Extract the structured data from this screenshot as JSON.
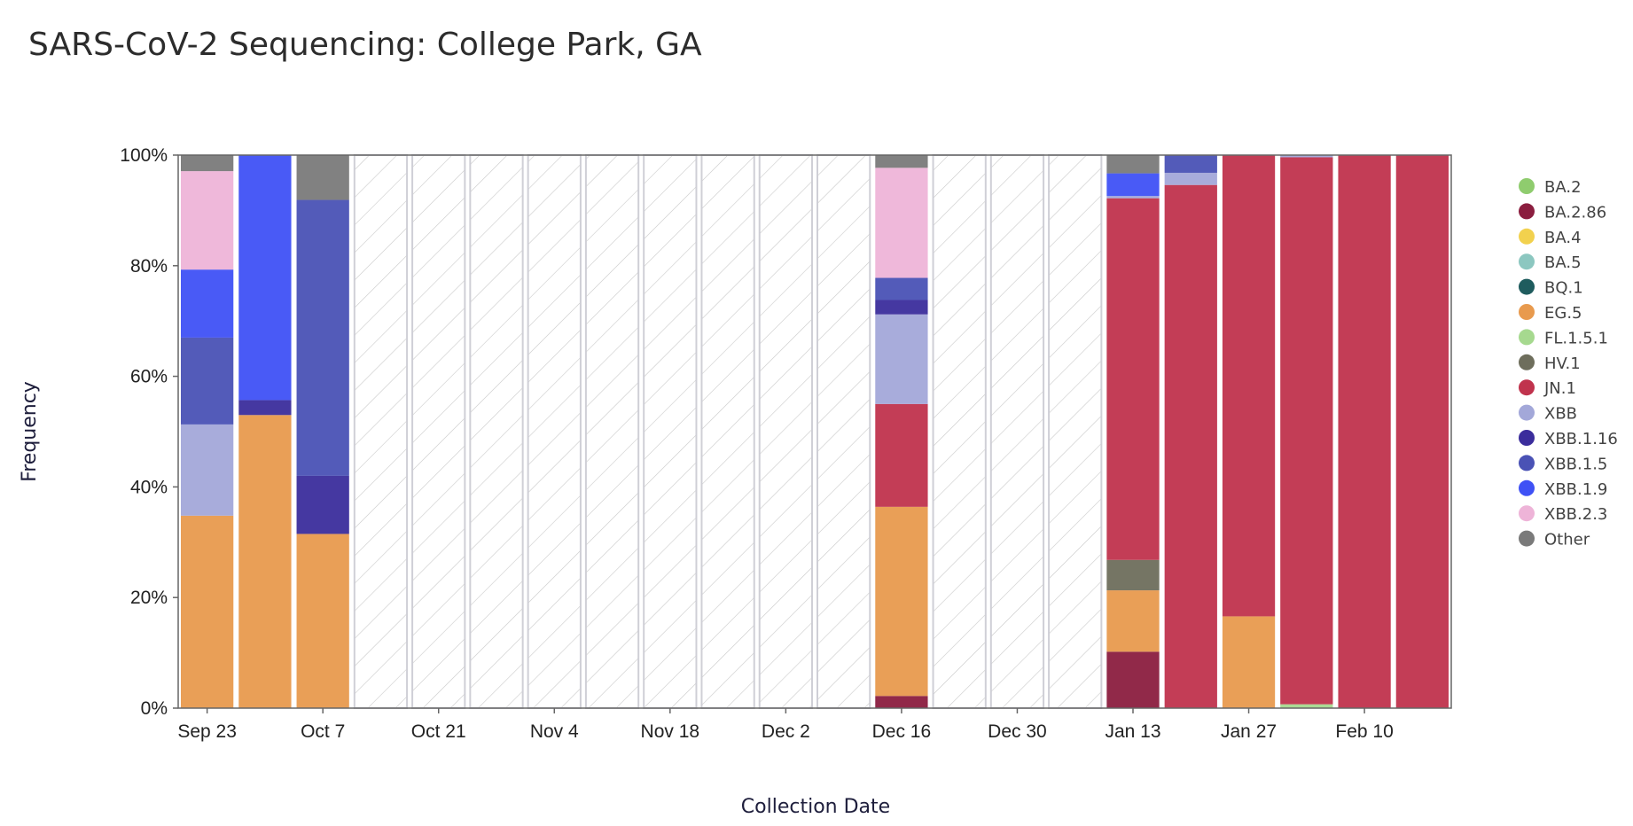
{
  "title": "SARS-CoV-2 Sequencing: College Park, GA",
  "colors": {
    "BA.2": "#8fcc6e",
    "BA.2.86": "#8b1e3f",
    "BA.4": "#f2d14e",
    "BA.5": "#8cc7c0",
    "BQ.1": "#1f5c5e",
    "EG.5": "#e89a4e",
    "FL.1.5.1": "#a6d98f",
    "HV.1": "#6e6e5c",
    "JN.1": "#c0334d",
    "XBB": "#a3a8d9",
    "XBB.1.16": "#3b2d9c",
    "XBB.1.5": "#4a52b5",
    "XBB.1.9": "#3f51f5",
    "XBB.2.3": "#eeb4d8",
    "Other": "#7a7a7a"
  },
  "chart_data": {
    "type": "bar",
    "stacked": true,
    "xlabel": "Collection Date",
    "ylabel": "Frequency",
    "ylim": [
      0,
      100
    ],
    "y_ticks": [
      "0%",
      "20%",
      "40%",
      "60%",
      "80%",
      "100%"
    ],
    "x_tick_labels": [
      "Sep 23",
      "Oct 7",
      "Oct 21",
      "Nov 4",
      "Nov 18",
      "Dec 2",
      "Dec 16",
      "Dec 30",
      "Jan 13",
      "Jan 27",
      "Feb 10"
    ],
    "x_tick_weeks": [
      0,
      2,
      4,
      6,
      8,
      10,
      12,
      14,
      16,
      18,
      20
    ],
    "weeks": [
      "Sep 23",
      "Sep 30",
      "Oct 7",
      "Oct 14",
      "Oct 21",
      "Oct 28",
      "Nov 4",
      "Nov 11",
      "Nov 18",
      "Nov 25",
      "Dec 2",
      "Dec 9",
      "Dec 16",
      "Dec 23",
      "Dec 30",
      "Jan 6",
      "Jan 13",
      "Jan 20",
      "Jan 27",
      "Feb 3",
      "Feb 10",
      "Feb 17"
    ],
    "legend_position": "right",
    "legend": [
      "BA.2",
      "BA.2.86",
      "BA.4",
      "BA.5",
      "BQ.1",
      "EG.5",
      "FL.1.5.1",
      "HV.1",
      "JN.1",
      "XBB",
      "XBB.1.16",
      "XBB.1.5",
      "XBB.1.9",
      "XBB.2.3",
      "Other"
    ],
    "series": [
      {
        "name": "BA.2.86",
        "values": [
          0,
          0,
          0,
          null,
          null,
          null,
          null,
          null,
          null,
          null,
          null,
          null,
          2.2,
          null,
          null,
          null,
          10.2,
          0,
          0,
          0,
          0,
          0
        ]
      },
      {
        "name": "EG.5",
        "values": [
          34.8,
          53,
          31.5,
          null,
          null,
          null,
          null,
          null,
          null,
          null,
          null,
          null,
          34.2,
          null,
          null,
          null,
          11.1,
          0,
          16.6,
          0,
          0,
          0
        ]
      },
      {
        "name": "FL.1.5.1",
        "values": [
          0,
          0,
          0,
          null,
          null,
          null,
          null,
          null,
          null,
          null,
          null,
          null,
          0,
          null,
          null,
          null,
          0,
          0,
          0,
          0.7,
          0,
          0
        ]
      },
      {
        "name": "HV.1",
        "values": [
          0,
          0,
          0,
          null,
          null,
          null,
          null,
          null,
          null,
          null,
          null,
          null,
          0,
          null,
          null,
          null,
          5.5,
          0,
          0,
          0,
          0,
          0
        ]
      },
      {
        "name": "JN.1",
        "values": [
          0,
          0,
          0,
          null,
          null,
          null,
          null,
          null,
          null,
          null,
          null,
          null,
          18.6,
          null,
          null,
          null,
          65.4,
          94.6,
          83.4,
          98.9,
          100,
          100
        ]
      },
      {
        "name": "XBB",
        "values": [
          16.5,
          0,
          0,
          null,
          null,
          null,
          null,
          null,
          null,
          null,
          null,
          null,
          16.2,
          null,
          null,
          null,
          0.4,
          2.2,
          0,
          0.4,
          0,
          0
        ]
      },
      {
        "name": "XBB.1.16",
        "values": [
          0,
          2.7,
          10.5,
          null,
          null,
          null,
          null,
          null,
          null,
          null,
          null,
          null,
          2.6,
          null,
          null,
          null,
          0,
          0,
          0,
          0,
          0,
          0
        ]
      },
      {
        "name": "XBB.1.5",
        "values": [
          15.7,
          0,
          49.9,
          null,
          null,
          null,
          null,
          null,
          null,
          null,
          null,
          null,
          4,
          null,
          null,
          null,
          0,
          3.2,
          0,
          0,
          0,
          0
        ]
      },
      {
        "name": "XBB.1.9",
        "values": [
          12.3,
          44.3,
          0,
          null,
          null,
          null,
          null,
          null,
          null,
          null,
          null,
          null,
          0,
          null,
          null,
          null,
          4.1,
          0,
          0,
          0,
          0,
          0
        ]
      },
      {
        "name": "XBB.2.3",
        "values": [
          17.8,
          0,
          0,
          null,
          null,
          null,
          null,
          null,
          null,
          null,
          null,
          null,
          19.9,
          null,
          null,
          null,
          0,
          0,
          0,
          0,
          0,
          0
        ]
      },
      {
        "name": "Other",
        "values": [
          2.9,
          0,
          8.1,
          null,
          null,
          null,
          null,
          null,
          null,
          null,
          null,
          null,
          2.3,
          null,
          null,
          null,
          3.3,
          0,
          0,
          0,
          0,
          0
        ]
      }
    ]
  }
}
